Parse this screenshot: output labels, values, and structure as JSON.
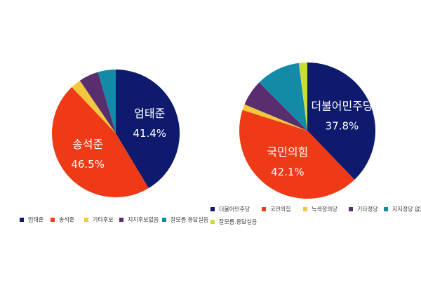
{
  "chart_data": [
    {
      "type": "pie",
      "categories": [
        "엄태준",
        "송석준",
        "기타후보",
        "지지후보없음",
        "잘모름.응답실음"
      ],
      "values": [
        41.4,
        46.5,
        2.6,
        5.0,
        4.5
      ],
      "value_labels": [
        "41.4%",
        "46.5%",
        null,
        null,
        null
      ],
      "colors": [
        "#0d1a6e",
        "#ee3a16",
        "#f2c83c",
        "#5a2d6e",
        "#138aa8"
      ]
    },
    {
      "type": "pie",
      "categories": [
        "더불어민주당",
        "국민의힘",
        "녹색정의당",
        "기타정당",
        "지지정당 없음",
        "잘모름.응답실음"
      ],
      "values": [
        37.8,
        42.1,
        1.4,
        6.2,
        10.5,
        2.0
      ],
      "value_labels": [
        "37.8%",
        "42.1%",
        null,
        null,
        null,
        null
      ],
      "colors": [
        "#0d1a6e",
        "#ee3a16",
        "#f2c83c",
        "#5a2d6e",
        "#138aa8",
        "#c8dc3c"
      ]
    }
  ]
}
